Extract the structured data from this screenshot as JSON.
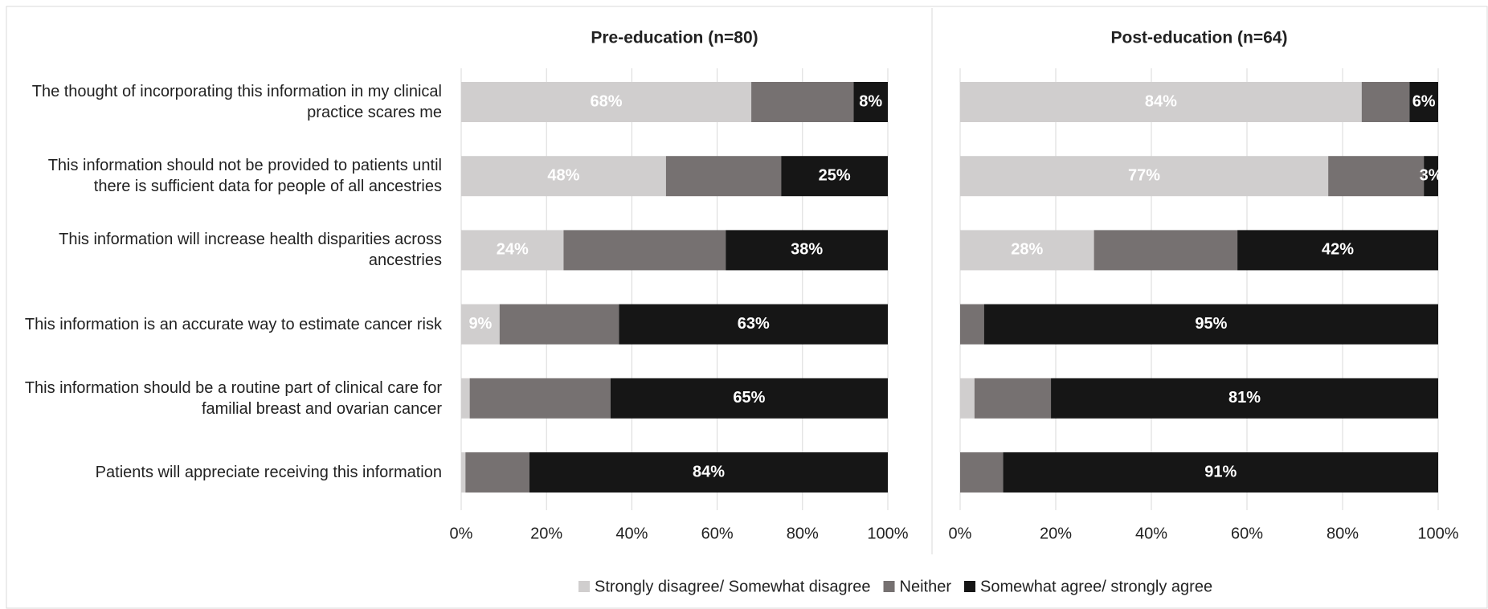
{
  "chart_data": [
    {
      "type": "stacked-barh",
      "title": "Pre-education (n=80)",
      "categories": [
        "The thought of incorporating this information in my clinical practice scares me",
        "This information should not be provided to patients until there is sufficient data for people of all ancestries",
        "This information will increase health disparities across ancestries",
        "This information is an accurate way to estimate cancer risk",
        "This information should be a routine part of clinical care for familial breast and ovarian cancer",
        "Patients will appreciate receiving this information"
      ],
      "series": [
        {
          "name": "Strongly disagree/ Somewhat disagree",
          "color": "#d0cece",
          "values": [
            68,
            48,
            24,
            9,
            2,
            1
          ],
          "value_labels": [
            "68%",
            "48%",
            "24%",
            "9%",
            null,
            null
          ]
        },
        {
          "name": "Neither",
          "color": "#767171",
          "values": [
            24,
            27,
            38,
            28,
            33,
            15
          ],
          "value_labels": [
            null,
            null,
            null,
            null,
            null,
            null
          ]
        },
        {
          "name": "Somewhat agree/ strongly agree",
          "color": "#161616",
          "values": [
            8,
            25,
            38,
            63,
            65,
            84
          ],
          "value_labels": [
            "8%",
            "25%",
            "38%",
            "63%",
            "65%",
            "84%"
          ]
        }
      ],
      "xlim": [
        0,
        100
      ],
      "xticks": [
        {
          "value": 0,
          "label": "0%"
        },
        {
          "value": 20,
          "label": "20%"
        },
        {
          "value": 40,
          "label": "40%"
        },
        {
          "value": 60,
          "label": "60%"
        },
        {
          "value": 80,
          "label": "80%"
        },
        {
          "value": 100,
          "label": "100%"
        }
      ],
      "grid": true
    },
    {
      "type": "stacked-barh",
      "title": "Post-education (n=64)",
      "series": [
        {
          "color": "#d0cece",
          "values": [
            84,
            77,
            28,
            0,
            3,
            0
          ],
          "value_labels": [
            "84%",
            "77%",
            "28%",
            null,
            null,
            null
          ]
        },
        {
          "color": "#767171",
          "values": [
            10,
            20,
            30,
            5,
            16,
            9
          ],
          "value_labels": [
            null,
            null,
            null,
            null,
            null,
            null
          ]
        },
        {
          "color": "#161616",
          "values": [
            6,
            3,
            42,
            95,
            81,
            91
          ],
          "value_labels": [
            "6%",
            "3%",
            "42%",
            "95%",
            "81%",
            "91%"
          ]
        }
      ],
      "xlim": [
        0,
        100
      ],
      "xticks": [
        {
          "value": 0,
          "label": "0%"
        },
        {
          "value": 20,
          "label": "20%"
        },
        {
          "value": 40,
          "label": "40%"
        },
        {
          "value": 60,
          "label": "60%"
        },
        {
          "value": 80,
          "label": "80%"
        },
        {
          "value": 100,
          "label": "100%"
        }
      ],
      "grid": true
    }
  ]
}
